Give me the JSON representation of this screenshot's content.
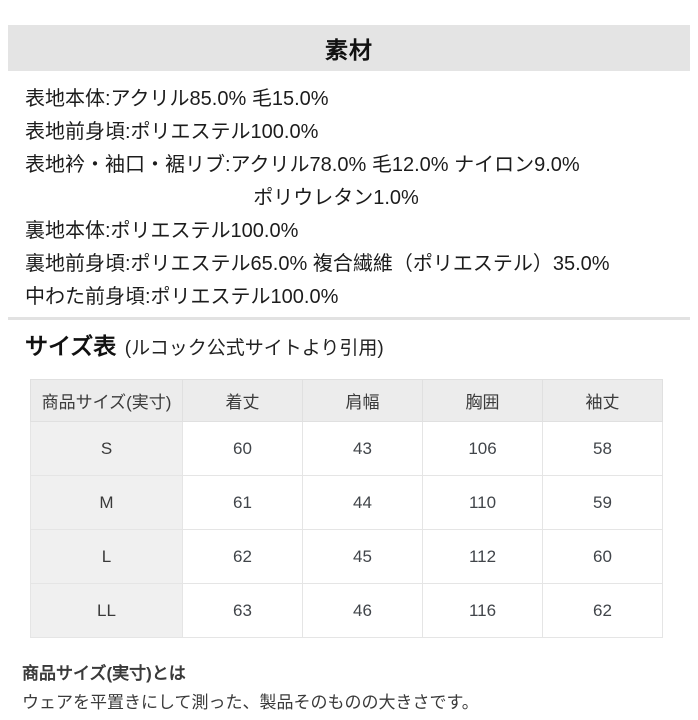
{
  "material": {
    "title": "素材",
    "lines": [
      "表地本体:アクリル85.0% 毛15.0%",
      "表地前身頃:ポリエステル100.0%",
      "表地衿・袖口・裾リブ:アクリル78.0% 毛12.0% ナイロン9.0%",
      "ポリウレタン1.0%",
      "裏地本体:ポリエステル100.0%",
      "裏地前身頃:ポリエステル65.0% 複合繊維（ポリエステル）35.0%",
      "中わた前身頃:ポリエステル100.0%"
    ]
  },
  "size_section": {
    "title": "サイズ表",
    "source": "(ルコック公式サイトより引用)",
    "table": {
      "headers": [
        "商品サイズ(実寸)",
        "着丈",
        "肩幅",
        "胸囲",
        "袖丈"
      ],
      "rows": [
        {
          "size": "S",
          "values": [
            60,
            43,
            106,
            58
          ]
        },
        {
          "size": "M",
          "values": [
            61,
            44,
            110,
            59
          ]
        },
        {
          "size": "L",
          "values": [
            62,
            45,
            112,
            60
          ]
        },
        {
          "size": "LL",
          "values": [
            63,
            46,
            116,
            62
          ]
        }
      ]
    }
  },
  "note": {
    "title": "商品サイズ(実寸)とは",
    "text": "ウェアを平置きにして測った、製品そのものの大きさです。"
  },
  "colors": {
    "section_header_bg": "#e4e4e4",
    "table_header_bg": "#ececec",
    "table_label_col_bg": "#f0f0f0",
    "divider": "#e2e2e2"
  }
}
